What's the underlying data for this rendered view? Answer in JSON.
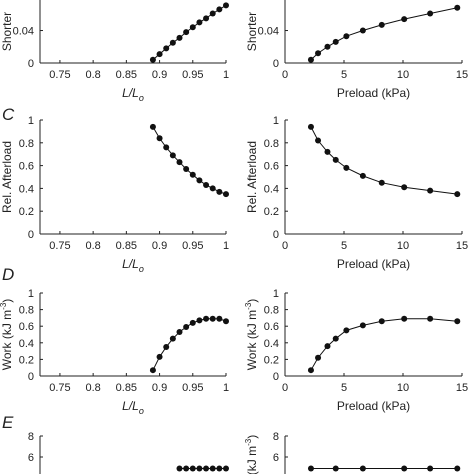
{
  "chart_data": [
    {
      "id": "B1",
      "type": "line",
      "panel_letter": "",
      "xlabel": "L/L",
      "xlabel_sub": "o",
      "ylabel": "Shorter",
      "xlim": [
        0.72,
        1.0
      ],
      "ylim": [
        0,
        0.085
      ],
      "xticks": [
        0.75,
        0.8,
        0.85,
        0.9,
        0.95,
        1
      ],
      "xtick_labels": [
        "0.75",
        "0.8",
        "0.85",
        "0.9",
        "0.95",
        "1"
      ],
      "yticks": [
        0,
        0.04
      ],
      "ytick_labels": [
        "0",
        "0.04"
      ],
      "x": [
        0.89,
        0.9,
        0.91,
        0.92,
        0.93,
        0.94,
        0.95,
        0.96,
        0.97,
        0.98,
        0.99,
        1.0
      ],
      "y": [
        0.004,
        0.011,
        0.018,
        0.025,
        0.031,
        0.038,
        0.044,
        0.05,
        0.055,
        0.061,
        0.066,
        0.071
      ]
    },
    {
      "id": "B2",
      "type": "line",
      "panel_letter": "",
      "xlabel": "Preload (kPa)",
      "xlabel_sub": "",
      "ylabel": "Shorter",
      "xlim": [
        0,
        15
      ],
      "ylim": [
        0,
        0.085
      ],
      "xticks": [
        0,
        5,
        10,
        15
      ],
      "xtick_labels": [
        "0",
        "5",
        "10",
        "15"
      ],
      "yticks": [
        0,
        0.04
      ],
      "ytick_labels": [
        "0",
        "0.04"
      ],
      "x": [
        2.2,
        2.8,
        3.6,
        4.3,
        5.2,
        6.6,
        8.2,
        10.1,
        12.3,
        14.6
      ],
      "y": [
        0.004,
        0.012,
        0.02,
        0.026,
        0.033,
        0.04,
        0.047,
        0.054,
        0.061,
        0.068
      ]
    },
    {
      "id": "C1",
      "type": "line",
      "panel_letter": "C",
      "xlabel": "L/L",
      "xlabel_sub": "o",
      "ylabel": "Rel. Afterload",
      "xlim": [
        0.72,
        1.0
      ],
      "ylim": [
        0,
        1.0
      ],
      "xticks": [
        0.75,
        0.8,
        0.85,
        0.9,
        0.95,
        1
      ],
      "xtick_labels": [
        "0.75",
        "0.8",
        "0.85",
        "0.9",
        "0.95",
        "1"
      ],
      "yticks": [
        0,
        0.2,
        0.4,
        0.6,
        0.8,
        1
      ],
      "ytick_labels": [
        "0",
        "0.2",
        "0.4",
        "0.6",
        "0.8",
        "1"
      ],
      "x": [
        0.89,
        0.9,
        0.91,
        0.92,
        0.93,
        0.94,
        0.95,
        0.96,
        0.97,
        0.98,
        0.99,
        1.0
      ],
      "y": [
        0.94,
        0.84,
        0.76,
        0.69,
        0.63,
        0.57,
        0.52,
        0.47,
        0.43,
        0.4,
        0.37,
        0.35
      ]
    },
    {
      "id": "C2",
      "type": "line",
      "panel_letter": "",
      "xlabel": "Preload (kPa)",
      "xlabel_sub": "",
      "ylabel": "Rel. Afterload",
      "xlim": [
        0,
        15
      ],
      "ylim": [
        0,
        1.0
      ],
      "xticks": [
        0,
        5,
        10,
        15
      ],
      "xtick_labels": [
        "0",
        "5",
        "10",
        "15"
      ],
      "yticks": [
        0,
        0.2,
        0.4,
        0.6,
        0.8,
        1
      ],
      "ytick_labels": [
        "0",
        "0.2",
        "0.4",
        "0.6",
        "0.8",
        "1"
      ],
      "x": [
        2.2,
        2.8,
        3.6,
        4.3,
        5.2,
        6.6,
        8.2,
        10.1,
        12.3,
        14.6
      ],
      "y": [
        0.94,
        0.82,
        0.72,
        0.65,
        0.58,
        0.51,
        0.45,
        0.41,
        0.38,
        0.35
      ]
    },
    {
      "id": "D1",
      "type": "line",
      "panel_letter": "D",
      "xlabel": "L/L",
      "xlabel_sub": "o",
      "ylabel": "Work (kJ m",
      "ylabel_sup": "-3",
      "ylabel_tail": ")",
      "xlim": [
        0.72,
        1.0
      ],
      "ylim": [
        0,
        1.0
      ],
      "xticks": [
        0.75,
        0.8,
        0.85,
        0.9,
        0.95,
        1
      ],
      "xtick_labels": [
        "0.75",
        "0.8",
        "0.85",
        "0.9",
        "0.95",
        "1"
      ],
      "yticks": [
        0,
        0.2,
        0.4,
        0.6,
        0.8,
        1
      ],
      "ytick_labels": [
        "0",
        "0.2",
        "0.4",
        "0.6",
        "0.8",
        "1"
      ],
      "x": [
        0.89,
        0.9,
        0.91,
        0.92,
        0.93,
        0.94,
        0.95,
        0.96,
        0.97,
        0.98,
        0.99,
        1.0
      ],
      "y": [
        0.07,
        0.23,
        0.35,
        0.45,
        0.53,
        0.59,
        0.64,
        0.67,
        0.69,
        0.69,
        0.69,
        0.66
      ]
    },
    {
      "id": "D2",
      "type": "line",
      "panel_letter": "",
      "xlabel": "Preload (kPa)",
      "xlabel_sub": "",
      "ylabel": "Work (kJ m",
      "ylabel_sup": "-3",
      "ylabel_tail": ")",
      "xlim": [
        0,
        15
      ],
      "ylim": [
        0,
        1.0
      ],
      "xticks": [
        0,
        5,
        10,
        15
      ],
      "xtick_labels": [
        "0",
        "5",
        "10",
        "15"
      ],
      "yticks": [
        0,
        0.2,
        0.4,
        0.6,
        0.8,
        1
      ],
      "ytick_labels": [
        "0",
        "0.2",
        "0.4",
        "0.6",
        "0.8",
        "1"
      ],
      "x": [
        2.2,
        2.8,
        3.6,
        4.3,
        5.2,
        6.6,
        8.2,
        10.1,
        12.3,
        14.6
      ],
      "y": [
        0.07,
        0.22,
        0.36,
        0.45,
        0.55,
        0.61,
        0.66,
        0.69,
        0.69,
        0.66
      ]
    },
    {
      "id": "E1",
      "type": "line",
      "panel_letter": "E",
      "xlabel": "",
      "xlabel_sub": "",
      "ylabel": "",
      "xlim": [
        0.72,
        1.0
      ],
      "ylim": [
        0,
        8
      ],
      "xticks": [],
      "xtick_labels": [],
      "yticks": [
        6,
        8
      ],
      "ytick_labels": [
        "6",
        "8"
      ],
      "x": [
        0.93,
        0.94,
        0.95,
        0.96,
        0.97,
        0.98,
        0.99,
        1.0
      ],
      "y": [
        4.9,
        4.9,
        4.9,
        4.9,
        4.9,
        4.9,
        4.9,
        4.9
      ]
    },
    {
      "id": "E2",
      "type": "line",
      "panel_letter": "",
      "xlabel": "",
      "xlabel_sub": "",
      "ylabel": "(kJ m",
      "ylabel_sup": "-3",
      "ylabel_tail": ")",
      "xlim": [
        0,
        15
      ],
      "ylim": [
        0,
        8
      ],
      "xticks": [],
      "xtick_labels": [],
      "yticks": [
        6,
        8
      ],
      "ytick_labels": [
        "6",
        "8"
      ],
      "x": [
        2.2,
        4.3,
        6.6,
        10.1,
        12.3,
        14.6
      ],
      "y": [
        4.9,
        4.9,
        4.9,
        4.9,
        4.9,
        4.9
      ]
    }
  ]
}
